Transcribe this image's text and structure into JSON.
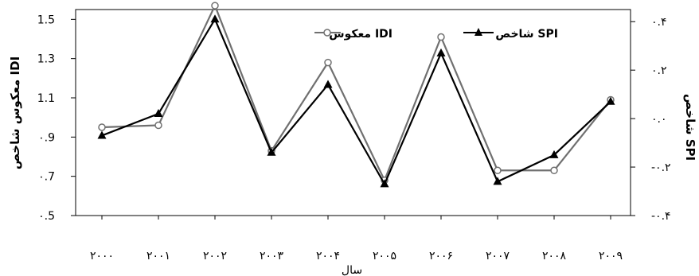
{
  "chart_data": {
    "type": "line",
    "categories": [
      "۲۰۰۰",
      "۲۰۰۱",
      "۲۰۰۲",
      "۲۰۰۳",
      "۲۰۰۴",
      "۲۰۰۵",
      "۲۰۰۶",
      "۲۰۰۷",
      "۲۰۰۸",
      "۲۰۰۹"
    ],
    "xlabel": "سال",
    "left_axis": {
      "label": "معکوس شاخص IDI",
      "ylim": [
        0.5,
        1.55
      ],
      "ticks": [
        0.5,
        0.7,
        0.9,
        1.1,
        1.3,
        1.5
      ],
      "tick_labels": [
        "۰.5",
        "۰.7",
        "۰.9",
        "1.1",
        "1.3",
        "1.5"
      ]
    },
    "right_axis": {
      "label": "شاخص SPI",
      "ylim": [
        -0.4,
        0.45
      ],
      "ticks": [
        -0.4,
        -0.2,
        0.0,
        0.2,
        0.4
      ],
      "tick_labels": [
        "-۰.۴",
        "-۰.۲",
        "۰.۰",
        "۰.۲",
        "۰.۴"
      ]
    },
    "series": [
      {
        "name": "معکوس IDI",
        "axis": "left",
        "marker": "circle",
        "color": "#707070",
        "values": [
          0.95,
          0.96,
          1.57,
          0.83,
          1.28,
          0.68,
          1.41,
          0.73,
          0.73,
          1.09
        ]
      },
      {
        "name": "شاخص SPI",
        "axis": "right",
        "marker": "triangle",
        "color": "#000000",
        "values": [
          -0.07,
          0.02,
          0.41,
          -0.14,
          0.14,
          -0.27,
          0.27,
          -0.26,
          -0.15,
          0.07
        ]
      }
    ],
    "legend": {
      "position": "top",
      "labels": [
        "معکوس IDI",
        "شاخص SPI"
      ]
    }
  }
}
